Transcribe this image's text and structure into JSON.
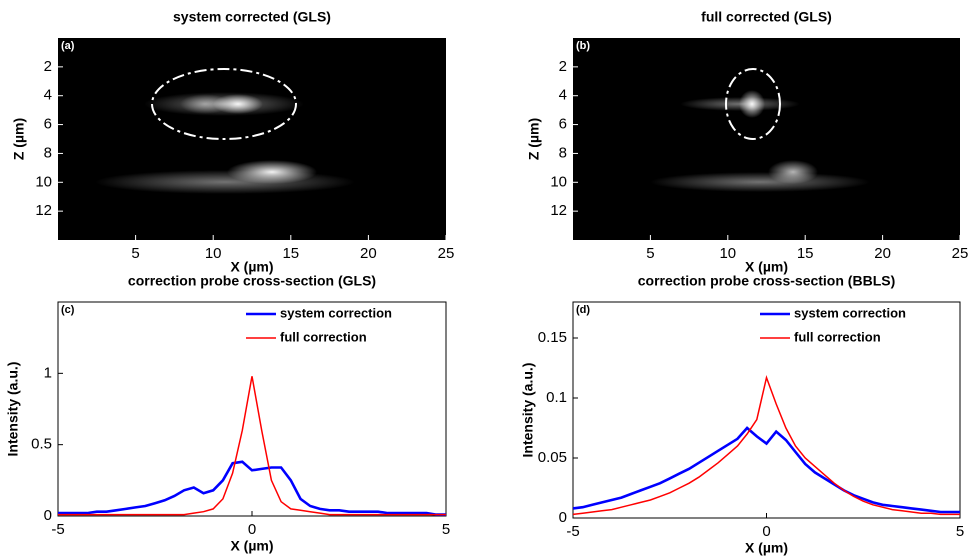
{
  "chart_data": [
    {
      "type": "image",
      "title": "system corrected (GLS)",
      "panel_label": "(a)",
      "xlabel": "X (µm)",
      "ylabel": "Z (µm)",
      "xlim": [
        0,
        25
      ],
      "ylim": [
        0,
        14
      ],
      "y_reversed": true,
      "xticks": [
        5,
        10,
        15,
        20,
        25
      ],
      "yticks": [
        2,
        4,
        6,
        8,
        10,
        12
      ]
    },
    {
      "type": "image",
      "title": "full corrected (GLS)",
      "panel_label": "(b)",
      "xlabel": "X (µm)",
      "ylabel": "Z (µm)",
      "xlim": [
        0,
        25
      ],
      "ylim": [
        0,
        14
      ],
      "y_reversed": true,
      "xticks": [
        5,
        10,
        15,
        20,
        25
      ],
      "yticks": [
        2,
        4,
        6,
        8,
        10,
        12
      ]
    },
    {
      "type": "line",
      "title": "correction probe cross-section (GLS)",
      "panel_label": "(c)",
      "xlabel": "X (µm)",
      "ylabel": "Intensity (a.u.)",
      "xlim": [
        -5,
        5
      ],
      "ylim": [
        0,
        1.5
      ],
      "xticks": [
        -5,
        0,
        5
      ],
      "yticks": [
        0,
        0.5,
        1
      ],
      "legend": "upper right",
      "x": [
        -5,
        -4.75,
        -4.5,
        -4.25,
        -4,
        -3.75,
        -3.5,
        -3.25,
        -3,
        -2.75,
        -2.5,
        -2.25,
        -2,
        -1.75,
        -1.5,
        -1.25,
        -1,
        -0.75,
        -0.5,
        -0.25,
        0,
        0.25,
        0.5,
        0.75,
        1,
        1.25,
        1.5,
        1.75,
        2,
        2.25,
        2.5,
        2.75,
        3,
        3.25,
        3.5,
        3.75,
        4,
        4.25,
        4.5,
        4.75,
        5
      ],
      "series": [
        {
          "name": "system correction",
          "color": "#0000ff",
          "values": [
            0.02,
            0.02,
            0.02,
            0.02,
            0.03,
            0.03,
            0.04,
            0.05,
            0.06,
            0.07,
            0.09,
            0.11,
            0.14,
            0.18,
            0.2,
            0.16,
            0.18,
            0.25,
            0.37,
            0.38,
            0.32,
            0.33,
            0.34,
            0.34,
            0.25,
            0.12,
            0.07,
            0.05,
            0.04,
            0.04,
            0.03,
            0.03,
            0.03,
            0.03,
            0.02,
            0.02,
            0.02,
            0.02,
            0.02,
            0.01,
            0.01
          ]
        },
        {
          "name": "full correction",
          "color": "#ff0000",
          "values": [
            0.01,
            0.01,
            0.01,
            0.01,
            0.01,
            0.01,
            0.01,
            0.01,
            0.01,
            0.01,
            0.01,
            0.01,
            0.01,
            0.01,
            0.02,
            0.03,
            0.05,
            0.12,
            0.3,
            0.6,
            0.98,
            0.6,
            0.25,
            0.1,
            0.05,
            0.04,
            0.03,
            0.02,
            0.01,
            0.01,
            0.01,
            0.01,
            0.01,
            0.01,
            0.01,
            0.01,
            0.01,
            0.01,
            0.01,
            0.01,
            0.01
          ]
        }
      ]
    },
    {
      "type": "line",
      "title": "correction probe cross-section (BBLS)",
      "panel_label": "(d)",
      "xlabel": "X (µm)",
      "ylabel": "Intensity (a.u.)",
      "xlim": [
        -5,
        5
      ],
      "ylim": [
        0,
        0.18
      ],
      "xticks": [
        -5,
        0,
        5
      ],
      "yticks": [
        0,
        0.05,
        0.1,
        0.15
      ],
      "legend": "upper right",
      "x": [
        -5,
        -4.75,
        -4.5,
        -4.25,
        -4,
        -3.75,
        -3.5,
        -3.25,
        -3,
        -2.75,
        -2.5,
        -2.25,
        -2,
        -1.75,
        -1.5,
        -1.25,
        -1,
        -0.75,
        -0.5,
        -0.25,
        0,
        0.25,
        0.5,
        0.75,
        1,
        1.25,
        1.5,
        1.75,
        2,
        2.25,
        2.5,
        2.75,
        3,
        3.25,
        3.5,
        3.75,
        4,
        4.25,
        4.5,
        4.75,
        5
      ],
      "series": [
        {
          "name": "system correction",
          "color": "#0000ff",
          "values": [
            0.008,
            0.009,
            0.011,
            0.013,
            0.015,
            0.017,
            0.02,
            0.023,
            0.026,
            0.029,
            0.033,
            0.037,
            0.041,
            0.046,
            0.051,
            0.056,
            0.061,
            0.066,
            0.075,
            0.068,
            0.062,
            0.072,
            0.065,
            0.055,
            0.045,
            0.038,
            0.033,
            0.028,
            0.023,
            0.019,
            0.016,
            0.013,
            0.011,
            0.01,
            0.009,
            0.008,
            0.007,
            0.006,
            0.005,
            0.005,
            0.005
          ]
        },
        {
          "name": "full correction",
          "color": "#ff0000",
          "values": [
            0.003,
            0.004,
            0.005,
            0.006,
            0.007,
            0.009,
            0.011,
            0.013,
            0.015,
            0.018,
            0.021,
            0.025,
            0.029,
            0.034,
            0.04,
            0.046,
            0.053,
            0.06,
            0.07,
            0.082,
            0.117,
            0.095,
            0.075,
            0.06,
            0.05,
            0.043,
            0.036,
            0.029,
            0.023,
            0.018,
            0.014,
            0.011,
            0.009,
            0.007,
            0.006,
            0.005,
            0.004,
            0.004,
            0.003,
            0.003,
            0.003
          ]
        }
      ]
    }
  ]
}
